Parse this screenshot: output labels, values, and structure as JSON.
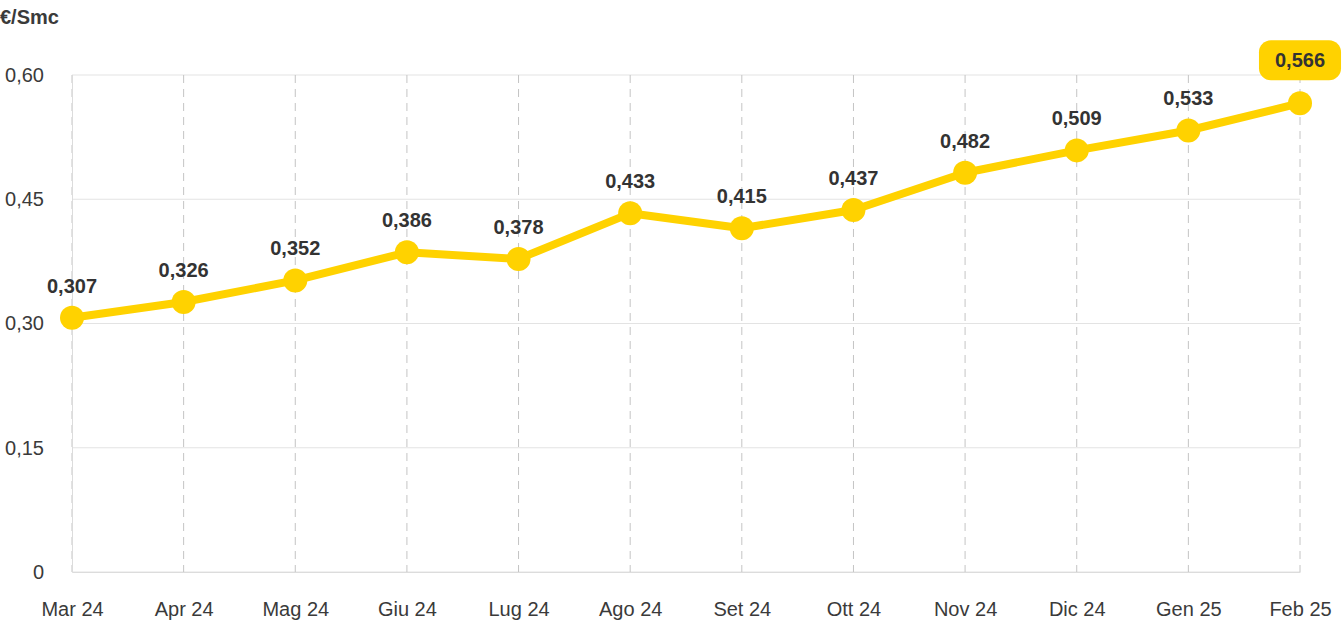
{
  "chart_data": {
    "type": "line",
    "ylabel": "€/Smc",
    "categories": [
      "Mar 24",
      "Apr 24",
      "Mag 24",
      "Giu 24",
      "Lug 24",
      "Ago 24",
      "Set 24",
      "Ott 24",
      "Nov 24",
      "Dic 24",
      "Gen 25",
      "Feb 25"
    ],
    "values": [
      0.307,
      0.326,
      0.352,
      0.386,
      0.378,
      0.433,
      0.415,
      0.437,
      0.482,
      0.509,
      0.533,
      0.566
    ],
    "value_labels": [
      "0,307",
      "0,326",
      "0,352",
      "0,386",
      "0,378",
      "0,433",
      "0,415",
      "0,437",
      "0,482",
      "0,509",
      "0,533",
      "0,566"
    ],
    "color": "#ffd200",
    "marker": "circle",
    "ylim": [
      0,
      0.6
    ],
    "yticks": [
      0,
      {
        "value": 0.15,
        "label": "0,15"
      },
      {
        "value": 0.3,
        "label": "0,30"
      },
      {
        "value": 0.45,
        "label": "0,45"
      },
      {
        "value": 0.6,
        "label": "0,60"
      }
    ],
    "grid": true,
    "data_labels": true
  }
}
